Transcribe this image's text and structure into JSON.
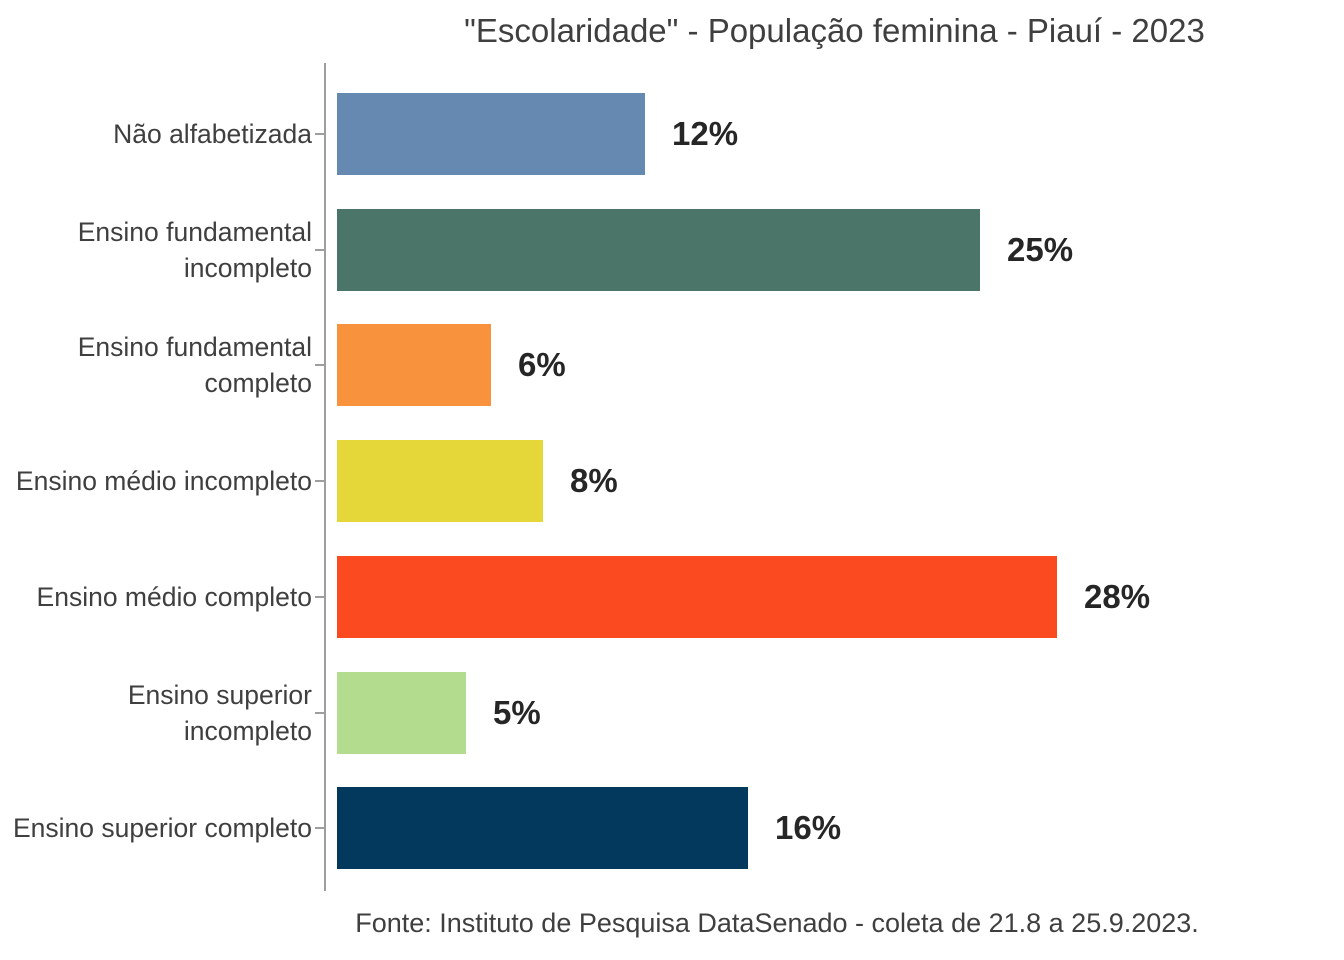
{
  "chart_data": {
    "type": "bar",
    "orientation": "horizontal",
    "title": "\"Escolaridade\" - População feminina - Piauí - 2023",
    "source": "Fonte: Instituto de Pesquisa DataSenado - coleta de 21.8 a 25.9.2023.",
    "categories": [
      "Não alfabetizada",
      "Ensino fundamental incompleto",
      "Ensino fundamental completo",
      "Ensino médio incompleto",
      "Ensino médio completo",
      "Ensino superior incompleto",
      "Ensino superior completo"
    ],
    "values": [
      12,
      25,
      6,
      8,
      28,
      5,
      16
    ],
    "value_labels": [
      "12%",
      "25%",
      "6%",
      "8%",
      "28%",
      "5%",
      "16%"
    ],
    "unit": "percent",
    "bar_colors": [
      "#6589B0",
      "#4A7568",
      "#F9923C",
      "#E5D739",
      "#FB4A20",
      "#B3DC8F",
      "#04395E"
    ],
    "axis_color": "#9e9e9e",
    "title_color": "#3f3f3f",
    "label_color": "#3f3f3f",
    "value_label_color": "#262626",
    "xlabel": "",
    "ylabel": "",
    "grid": false,
    "legend": false,
    "data_labels": "outside-end"
  }
}
